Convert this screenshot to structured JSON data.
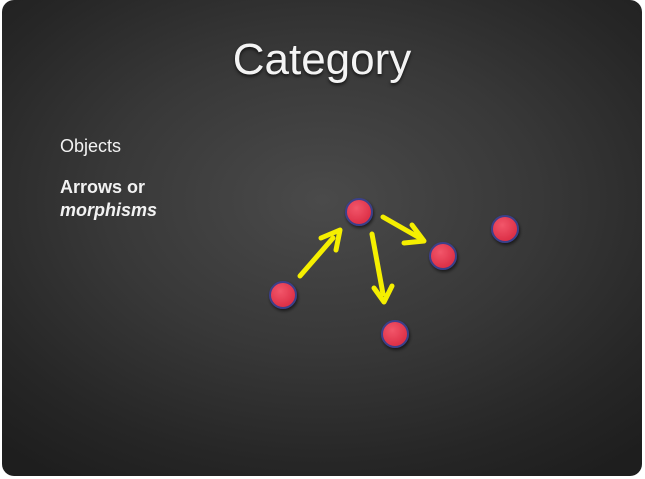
{
  "slide": {
    "title": "Category",
    "bullets": {
      "objects": "Objects",
      "arrows_line1": "Arrows or",
      "arrows_line2": "morphisms"
    }
  },
  "colors": {
    "node_fill": "#e8384f",
    "node_stroke": "#3b3f8a",
    "arrow": "#f5ef00"
  }
}
